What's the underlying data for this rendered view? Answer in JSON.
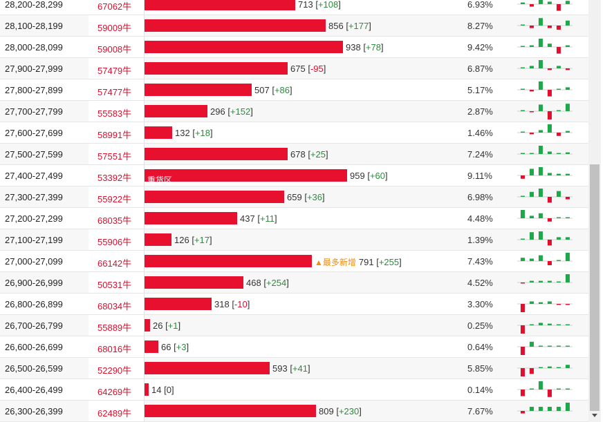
{
  "colors": {
    "up": "#2e8b3d",
    "down": "#d8102e",
    "bar": "#e8102f",
    "spark_up": "#1fa84a",
    "spark_down": "#e0102f"
  },
  "rows": [
    {
      "range": "28,200-28,299",
      "id": "67062牛",
      "count": 713,
      "count_text": "713",
      "change": "+108",
      "dir": "up",
      "pct": "6.93%",
      "label": "",
      "flag": "",
      "spark": [
        0.2,
        -0.3,
        0.9,
        0.3,
        -0.8,
        0.4
      ]
    },
    {
      "range": "28,100-28,199",
      "id": "59009牛",
      "count": 856,
      "count_text": "856",
      "change": "+177",
      "dir": "up",
      "pct": "8.27%",
      "label": "",
      "flag": "",
      "spark": [
        0.0,
        -0.3,
        0.9,
        -0.3,
        -0.5,
        0.6
      ]
    },
    {
      "range": "28,000-28,099",
      "id": "59008牛",
      "count": 938,
      "count_text": "938",
      "change": "+78",
      "dir": "up",
      "pct": "9.42%",
      "label": "",
      "flag": "",
      "spark": [
        0.0,
        0.2,
        1.0,
        0.4,
        -0.8,
        0.2
      ]
    },
    {
      "range": "27,900-27,999",
      "id": "57479牛",
      "count": 675,
      "count_text": "675",
      "change": "-95",
      "dir": "down",
      "pct": "6.87%",
      "label": "",
      "flag": "",
      "spark": [
        0.0,
        0.3,
        1.0,
        -0.2,
        0.3,
        -0.2
      ]
    },
    {
      "range": "27,800-27,899",
      "id": "57477牛",
      "count": 507,
      "count_text": "507",
      "change": "+86",
      "dir": "up",
      "pct": "5.17%",
      "label": "",
      "flag": "",
      "spark": [
        0.0,
        -0.2,
        1.0,
        -0.8,
        0.0,
        0.3
      ]
    },
    {
      "range": "27,700-27,799",
      "id": "55583牛",
      "count": 296,
      "count_text": "296",
      "change": "+152",
      "dir": "up",
      "pct": "2.87%",
      "label": "",
      "flag": "",
      "spark": [
        0.0,
        -0.1,
        0.8,
        -1.0,
        0.1,
        0.9
      ]
    },
    {
      "range": "27,600-27,699",
      "id": "58991牛",
      "count": 132,
      "count_text": "132",
      "change": "+18",
      "dir": "up",
      "pct": "1.46%",
      "label": "",
      "flag": "",
      "spark": [
        0.0,
        -0.2,
        0.3,
        1.0,
        -0.4,
        0.2
      ]
    },
    {
      "range": "27,500-27,599",
      "id": "57551牛",
      "count": 678,
      "count_text": "678",
      "change": "+25",
      "dir": "up",
      "pct": "7.24%",
      "label": "",
      "flag": "",
      "spark": [
        0.0,
        0.1,
        1.0,
        0.3,
        0.1,
        0.2
      ]
    },
    {
      "range": "27,400-27,499",
      "id": "53392牛",
      "count": 959,
      "count_text": "959",
      "change": "+60",
      "dir": "up",
      "pct": "9.11%",
      "label": "重货区",
      "flag": "",
      "spark": [
        -0.4,
        0.8,
        1.0,
        0.3,
        0.2,
        0.2
      ]
    },
    {
      "range": "27,300-27,399",
      "id": "55922牛",
      "count": 659,
      "count_text": "659",
      "change": "+36",
      "dir": "up",
      "pct": "6.98%",
      "label": "",
      "flag": "",
      "spark": [
        0.0,
        0.6,
        1.0,
        -0.7,
        0.7,
        -0.3
      ]
    },
    {
      "range": "27,200-27,299",
      "id": "68035牛",
      "count": 437,
      "count_text": "437",
      "change": "+11",
      "dir": "up",
      "pct": "4.48%",
      "label": "",
      "flag": "",
      "spark": [
        1.0,
        0.3,
        0.6,
        -0.4,
        0.1,
        0.1
      ]
    },
    {
      "range": "27,100-27,199",
      "id": "55906牛",
      "count": 126,
      "count_text": "126",
      "change": "+17",
      "dir": "up",
      "pct": "1.39%",
      "label": "",
      "flag": "",
      "spark": [
        0.0,
        0.9,
        1.0,
        -0.7,
        0.3,
        0.3
      ]
    },
    {
      "range": "27,000-27,099",
      "id": "66142牛",
      "count": 791,
      "count_text": "791",
      "change": "+255",
      "dir": "up",
      "pct": "7.43%",
      "label": "",
      "flag": "▲最多新增",
      "spark": [
        0.4,
        0.3,
        0.7,
        -0.5,
        0.0,
        1.0
      ]
    },
    {
      "range": "26,900-26,999",
      "id": "50531牛",
      "count": 468,
      "count_text": "468",
      "change": "+254",
      "dir": "up",
      "pct": "4.52%",
      "label": "",
      "flag": "",
      "spark": [
        -0.1,
        0.2,
        0.2,
        0.2,
        0.0,
        1.0
      ]
    },
    {
      "range": "26,800-26,899",
      "id": "68034牛",
      "count": 318,
      "count_text": "318",
      "change": "-10",
      "dir": "down",
      "pct": "3.30%",
      "label": "",
      "flag": "",
      "spark": [
        -1.0,
        0.3,
        0.2,
        0.3,
        -0.1,
        -0.1
      ]
    },
    {
      "range": "26,700-26,799",
      "id": "55889牛",
      "count": 26,
      "count_text": "26",
      "change": "+1",
      "dir": "up",
      "pct": "0.25%",
      "label": "",
      "flag": "",
      "spark": [
        -1.0,
        0.1,
        0.3,
        0.2,
        0.1,
        0.0
      ]
    },
    {
      "range": "26,600-26,699",
      "id": "68016牛",
      "count": 66,
      "count_text": "66",
      "change": "+3",
      "dir": "up",
      "pct": "0.64%",
      "label": "",
      "flag": "",
      "spark": [
        -1.0,
        0.6,
        0.1,
        0.1,
        0.1,
        0.1
      ]
    },
    {
      "range": "26,500-26,599",
      "id": "52290牛",
      "count": 593,
      "count_text": "593",
      "change": "+41",
      "dir": "up",
      "pct": "5.85%",
      "label": "",
      "flag": "",
      "spark": [
        -1.0,
        -0.7,
        0.1,
        0.2,
        0.1,
        0.4
      ]
    },
    {
      "range": "26,400-26,499",
      "id": "64269牛",
      "count": 14,
      "count_text": "14",
      "change": "0",
      "dir": "zero",
      "pct": "0.14%",
      "label": "",
      "flag": "",
      "spark": [
        -0.8,
        0.0,
        1.0,
        -0.9,
        0.0,
        0.0
      ]
    },
    {
      "range": "26,300-26,399",
      "id": "62489牛",
      "count": 809,
      "count_text": "809",
      "change": "+230",
      "dir": "up",
      "pct": "7.67%",
      "label": "",
      "flag": "",
      "spark": [
        -0.3,
        0.5,
        0.5,
        0.5,
        0.5,
        1.0
      ]
    }
  ]
}
